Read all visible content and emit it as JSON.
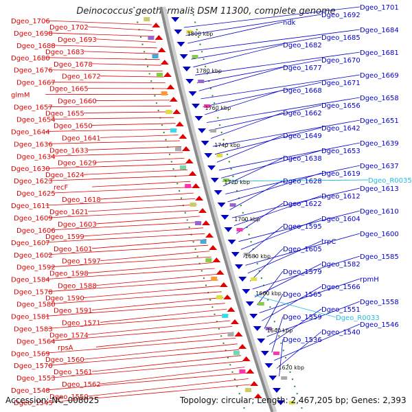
{
  "title": "Deinococcus geothermalis DSM 11300, complete genome",
  "footer": {
    "accession": "Accession: NC_008025",
    "stats": "Topology: circular; Length: 2,467,205 bp; Genes: 2,393"
  },
  "colors": {
    "left": "#e00000",
    "right": "#0000cc",
    "rna": "#22bbdd",
    "backbone": "#8a8a8a",
    "tick": "#228b22"
  },
  "kbp_ticks": [
    "1800 kbp",
    "1780 kbp",
    "1760 kbp",
    "1740 kbp",
    "1720 kbp",
    "1700 kbp",
    "1680 kbp",
    "1660 kbp",
    "1640 kbp",
    "1620 kbp"
  ],
  "left_labels": [
    "Dgeo_1706",
    "Dgeo_1702",
    "Dgeo_1698",
    "Dgeo_1693",
    "Dgeo_1688",
    "Dgeo_1683",
    "Dgeo_1680",
    "Dgeo_1678",
    "Dgeo_1676",
    "Dgeo_1672",
    "Dgeo_1667",
    "Dgeo_1665",
    "glmM",
    "Dgeo_1660",
    "Dgeo_1657",
    "Dgeo_1655",
    "Dgeo_1654",
    "Dgeo_1650",
    "Dgeo_1644",
    "Dgeo_1641",
    "Dgeo_1636",
    "Dgeo_1633",
    "Dgeo_1634",
    "Dgeo_1629",
    "Dgeo_1630",
    "Dgeo_1624",
    "Dgeo_1623",
    "recF",
    "Dgeo_1625",
    "Dgeo_1618",
    "Dgeo_1611",
    "Dgeo_1621",
    "Dgeo_1609",
    "Dgeo_1603",
    "Dgeo_1606",
    "Dgeo_1599",
    "Dgeo_1607",
    "Dgeo_1601",
    "Dgeo_1602",
    "Dgeo_1597",
    "Dgeo_1592",
    "Dgeo_1598",
    "Dgeo_1584",
    "Dgeo_1588",
    "Dgeo_1578",
    "Dgeo_1590",
    "Dgeo_1580",
    "Dgeo_1591",
    "Dgeo_1581",
    "Dgeo_1571",
    "Dgeo_1583",
    "Dgeo_1574",
    "Dgeo_1564",
    "rpsA",
    "Dgeo_1569",
    "Dgeo_1560",
    "Dgeo_1570",
    "Dgeo_1561",
    "Dgeo_1553",
    "Dgeo_1562",
    "Dgeo_1548",
    "Dgeo_1550",
    "Dgeo_1545"
  ],
  "right_labels": [
    "Dgeo_1701",
    "Dgeo_1692",
    "ndk",
    "Dgeo_1684",
    "Dgeo_1685",
    "Dgeo_1682",
    "Dgeo_1681",
    "Dgeo_1670",
    "Dgeo_1677",
    "Dgeo_1669",
    "Dgeo_1671",
    "Dgeo_1668",
    "Dgeo_1658",
    "Dgeo_1656",
    "Dgeo_1662",
    "Dgeo_1651",
    "Dgeo_1642",
    "Dgeo_1649",
    "Dgeo_1639",
    "Dgeo_1653",
    "Dgeo_1638",
    "Dgeo_1637",
    "Dgeo_1619",
    "Dgeo_1628",
    "Dgeo_1613",
    "Dgeo_1612",
    "Dgeo_1622",
    "Dgeo_1610",
    "Dgeo_1604",
    "Dgeo_1595",
    "Dgeo_1600",
    "trpC",
    "Dgeo_1605",
    "Dgeo_1585",
    "Dgeo_1582",
    "Dgeo_1579",
    "rpmH",
    "Dgeo_1566",
    "Dgeo_1565",
    "Dgeo_1558",
    "Dgeo_1551",
    "Dgeo_1559",
    "Dgeo_1546",
    "Dgeo_1540",
    "Dgeo_1536"
  ],
  "rna_labels": [
    "Dgeo_R0035",
    "Dgeo_R0033"
  ]
}
